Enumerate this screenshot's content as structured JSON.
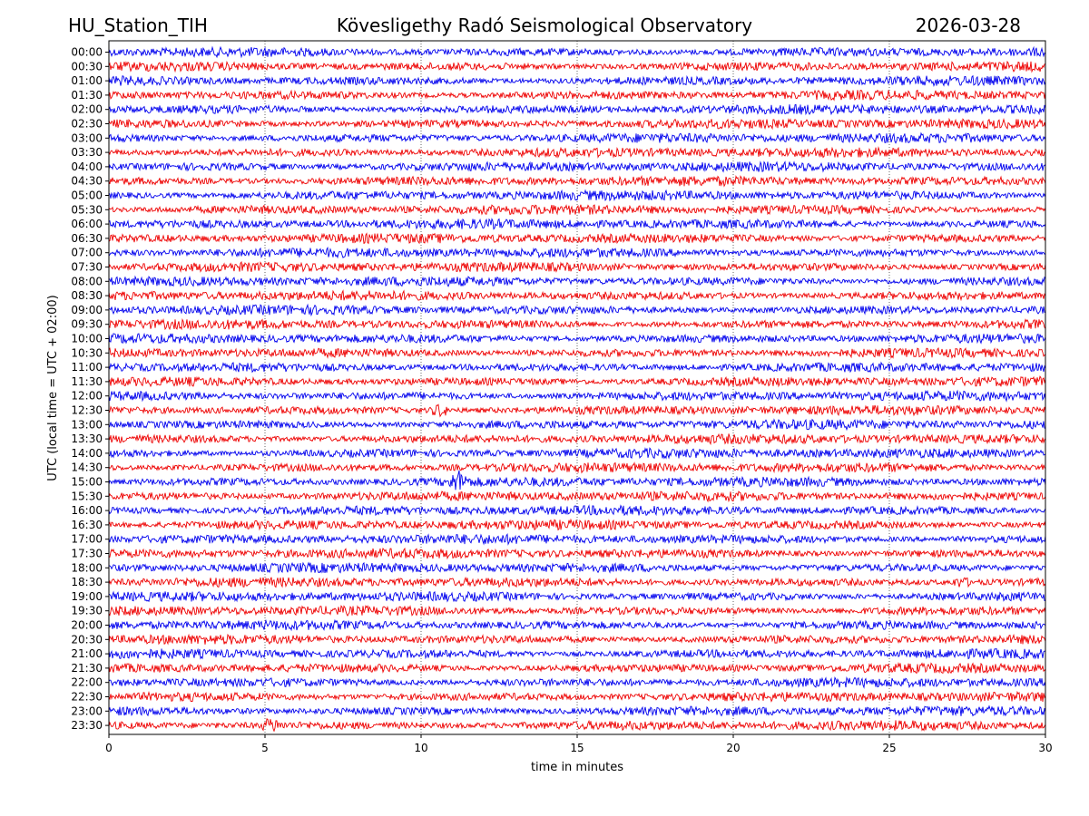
{
  "header": {
    "station": "HU_Station_TIH",
    "title": "Kövesligethy Radó Seismological Observatory",
    "date": "2026-03-28"
  },
  "chart_data": {
    "type": "line",
    "subtype": "helicorder",
    "xlabel": "time in minutes",
    "ylabel": "UTC (local time = UTC + 02:00)",
    "xlim": [
      0,
      30
    ],
    "x_ticks": [
      "0",
      "5",
      "10",
      "15",
      "20",
      "25",
      "30"
    ],
    "x_tick_values": [
      0,
      5,
      10,
      15,
      20,
      25,
      30
    ],
    "rows": [
      "00:00",
      "00:30",
      "01:00",
      "01:30",
      "02:00",
      "02:30",
      "03:00",
      "03:30",
      "04:00",
      "04:30",
      "05:00",
      "05:30",
      "06:00",
      "06:30",
      "07:00",
      "07:30",
      "08:00",
      "08:30",
      "09:00",
      "09:30",
      "10:00",
      "10:30",
      "11:00",
      "11:30",
      "12:00",
      "12:30",
      "13:00",
      "13:30",
      "14:00",
      "14:30",
      "15:00",
      "15:30",
      "16:00",
      "16:30",
      "17:00",
      "17:30",
      "18:00",
      "18:30",
      "19:00",
      "19:30",
      "20:00",
      "20:30",
      "21:00",
      "21:30",
      "22:00",
      "22:30",
      "23:00",
      "23:30"
    ],
    "trace_colors": [
      "#0000ee",
      "#ee0000"
    ],
    "grid_x": true,
    "events": [
      {
        "row": "12:30",
        "minute": 10.6,
        "amplitude": 2.2
      },
      {
        "row": "15:00",
        "minute": 11.2,
        "amplitude": 1.9
      },
      {
        "row": "23:30",
        "minute": 5.2,
        "amplitude": 1.6
      },
      {
        "row": "18:30",
        "minute": 27.3,
        "amplitude": 1.4
      }
    ]
  }
}
